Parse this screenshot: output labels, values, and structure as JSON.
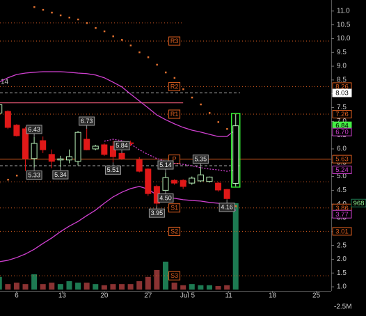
{
  "chart_data": {
    "type": "candlestick",
    "x": [
      -2,
      -1,
      0,
      1,
      2,
      3,
      4,
      5,
      6,
      7,
      8,
      9,
      10,
      11,
      12,
      13,
      14,
      15,
      16,
      17,
      18,
      19,
      20,
      21,
      22,
      23,
      24,
      25
    ],
    "open": [
      7.3,
      7.36,
      6.86,
      6.73,
      5.65,
      6.3,
      5.8,
      5.6,
      5.6,
      5.55,
      6.35,
      6.0,
      6.15,
      6.1,
      5.84,
      6.22,
      5.6,
      5.27,
      4.64,
      4.5,
      4.86,
      4.86,
      4.76,
      4.84,
      4.82,
      4.76,
      4.53,
      4.75
    ],
    "high": [
      7.7,
      7.4,
      6.9,
      6.8,
      6.43,
      6.45,
      5.98,
      5.75,
      5.98,
      6.65,
      6.73,
      6.15,
      6.2,
      6.3,
      5.84,
      6.3,
      5.7,
      5.3,
      4.7,
      5.14,
      4.9,
      4.9,
      5.0,
      5.35,
      5.0,
      4.8,
      4.55,
      7.26
    ],
    "low": [
      7.2,
      6.72,
      6.45,
      5.2,
      5.33,
      5.85,
      5.3,
      5.34,
      5.48,
      5.4,
      5.95,
      5.95,
      5.75,
      5.51,
      5.6,
      6.1,
      5.15,
      4.3,
      3.95,
      4.5,
      4.7,
      4.55,
      4.7,
      4.8,
      4.78,
      4.45,
      4.16,
      4.64
    ],
    "close": [
      7.6,
      6.78,
      6.48,
      5.65,
      6.2,
      5.97,
      5.55,
      5.64,
      5.72,
      6.6,
      5.97,
      6.1,
      5.8,
      5.72,
      5.65,
      6.2,
      5.19,
      4.38,
      4.03,
      4.96,
      4.76,
      4.64,
      4.94,
      5.06,
      4.98,
      4.51,
      4.2,
      6.84
    ],
    "volume": [
      0.44,
      0.19,
      0.24,
      0.19,
      0.53,
      0.19,
      0.24,
      0.19,
      0.29,
      0.24,
      0.24,
      0.19,
      0.15,
      0.19,
      0.19,
      0.19,
      0.29,
      0.44,
      0.68,
      0.97,
      0.24,
      0.15,
      0.19,
      0.15,
      0.15,
      0.12,
      0.15,
      3.0
    ],
    "upper_band": [
      8.42,
      8.58,
      8.7,
      8.75,
      8.78,
      8.8,
      8.8,
      8.8,
      8.78,
      8.75,
      8.73,
      8.68,
      8.58,
      8.42,
      8.25,
      7.99,
      7.74,
      7.49,
      7.23,
      7.06,
      6.91,
      6.78,
      6.68,
      6.61,
      6.53,
      6.45,
      6.45,
      6.7
    ],
    "middle_band": [
      null,
      null,
      null,
      null,
      null,
      null,
      null,
      null,
      null,
      null,
      null,
      null,
      6.28,
      6.35,
      6.3,
      6.18,
      5.97,
      5.8,
      5.65,
      5.55,
      5.47,
      5.44,
      5.39,
      5.32,
      5.27,
      5.24,
      5.19,
      5.24
    ],
    "lower_band": [
      1.91,
      1.96,
      2.06,
      2.19,
      2.36,
      2.57,
      2.77,
      3.0,
      3.2,
      3.37,
      3.58,
      3.78,
      4.03,
      4.26,
      4.43,
      4.56,
      4.64,
      4.54,
      4.33,
      4.26,
      4.21,
      4.16,
      4.13,
      4.11,
      4.06,
      4.03,
      4.01,
      3.77
    ],
    "sar": [
      4.79,
      4.89,
      5.04,
      null,
      11.15,
      11.05,
      10.95,
      10.85,
      10.77,
      10.7,
      10.57,
      10.39,
      10.27,
      10.09,
      9.96,
      9.76,
      9.51,
      9.33,
      9.06,
      8.78,
      8.58,
      8.17,
      7.87,
      7.62,
      7.31,
      6.98,
      6.73,
      3.93
    ],
    "up_color": "#b8f0b8",
    "down_color": "#e01818",
    "volume_up_color": "#1d7a52",
    "volume_down_color": "#8a3232",
    "band_color": "#d040d0",
    "sar_color": "#e07030",
    "highlight_color": "#33ee33",
    "highlight_last": true,
    "xlim": [
      -1.9,
      35.9
    ],
    "xticks": [
      {
        "value": 0,
        "label": "6"
      },
      {
        "value": 5.2,
        "label": "13"
      },
      {
        "value": 10,
        "label": "20"
      },
      {
        "value": 15,
        "label": "27"
      },
      {
        "value": 19.5,
        "label": "Jul 5"
      },
      {
        "value": 24.2,
        "label": "11"
      },
      {
        "value": 29.2,
        "label": "18"
      },
      {
        "value": 34.2,
        "label": "25"
      }
    ],
    "ylim": [
      0.85,
      11.4
    ],
    "yticks": [
      {
        "value": 11,
        "label": "11.0"
      },
      10.5,
      {
        "value": 10,
        "label": "10.0"
      },
      9.5,
      {
        "value": 9,
        "label": "9.0"
      },
      8.5,
      {
        "value": 8,
        "label": "8.0"
      },
      7.5,
      {
        "value": 7,
        "label": "7.0"
      },
      6.5,
      {
        "value": 6,
        "label": "6.0"
      },
      5.5,
      {
        "value": 5,
        "label": "5.0"
      },
      4.5,
      {
        "value": 4,
        "label": "4.0"
      },
      3.5,
      {
        "value": 3,
        "label": "3.0"
      },
      2.5,
      {
        "value": 2,
        "label": "2.0"
      },
      1.5,
      {
        "value": 1,
        "label": "1.0"
      }
    ],
    "volume_ylim": [
      0,
      3.0
    ],
    "volume_axis_label": "-2.5M",
    "last_volume_label": "968",
    "left_label": "14",
    "pivot_color": "#e06020",
    "pivots": [
      {
        "name": "R3",
        "value": 9.91
      },
      {
        "name": "R2",
        "value": 8.26
      },
      {
        "name": "R1",
        "value": 7.26
      },
      {
        "name": "P",
        "value": 5.63
      },
      {
        "name": "S1",
        "value": 3.86
      },
      {
        "name": "S2",
        "value": 3.01
      },
      {
        "name": "S3",
        "value": 1.4
      }
    ],
    "pivot_label_x": 18,
    "lines": [
      {
        "value": 10.57,
        "color": "#c05020",
        "style": "dotted",
        "x_end": 19
      },
      {
        "value": 7.67,
        "color": "#ff6080",
        "style": "solid",
        "x_end": 19
      },
      {
        "value": 8.03,
        "color": "#bbbbbb",
        "style": "dashed",
        "x_end": 25.5
      },
      {
        "value": 5.39,
        "color": "#bbbbbb",
        "style": "dashed",
        "x_end": 25.5
      },
      {
        "value": 4.81,
        "color": "#c05020",
        "style": "dotted"
      }
    ],
    "price_labels": [
      {
        "value": 8.26,
        "color": "#e06020",
        "fill": false
      },
      {
        "value": 8.03,
        "color": "#ffffff",
        "fill": true
      },
      {
        "value": 7.26,
        "color": "#e06020",
        "fill": false
      },
      {
        "value": 6.84,
        "color": "#44ee44",
        "fill": true
      },
      {
        "value": 6.7,
        "label": "6.70",
        "color": "#d040d0",
        "fill": false
      },
      {
        "value": 5.63,
        "color": "#e06020",
        "fill": false
      },
      {
        "value": 5.24,
        "color": "#d040d0",
        "fill": false
      },
      {
        "value": 3.86,
        "color": "#e06020",
        "fill": false
      },
      {
        "value": 3.77,
        "color": "#d040d0",
        "fill": false
      },
      {
        "value": 3.01,
        "color": "#e06020",
        "fill": false
      }
    ],
    "annotations": [
      {
        "x": 2,
        "value": 6.43,
        "position": "above"
      },
      {
        "x": 2,
        "value": 5.33,
        "position": "below"
      },
      {
        "x": 5,
        "value": 5.34,
        "position": "below"
      },
      {
        "x": 8,
        "value": 6.73,
        "position": "above"
      },
      {
        "x": 12,
        "value": 5.84,
        "position": "above"
      },
      {
        "x": 11,
        "value": 5.51,
        "position": "below"
      },
      {
        "x": 17,
        "value": 5.14,
        "position": "above"
      },
      {
        "x": 17,
        "value": 4.5,
        "label": "4.50",
        "position": "below"
      },
      {
        "x": 16,
        "value": 3.95,
        "position": "below"
      },
      {
        "x": 21,
        "value": 5.35,
        "position": "above"
      },
      {
        "x": 24,
        "value": 4.16,
        "position": "below"
      }
    ]
  }
}
